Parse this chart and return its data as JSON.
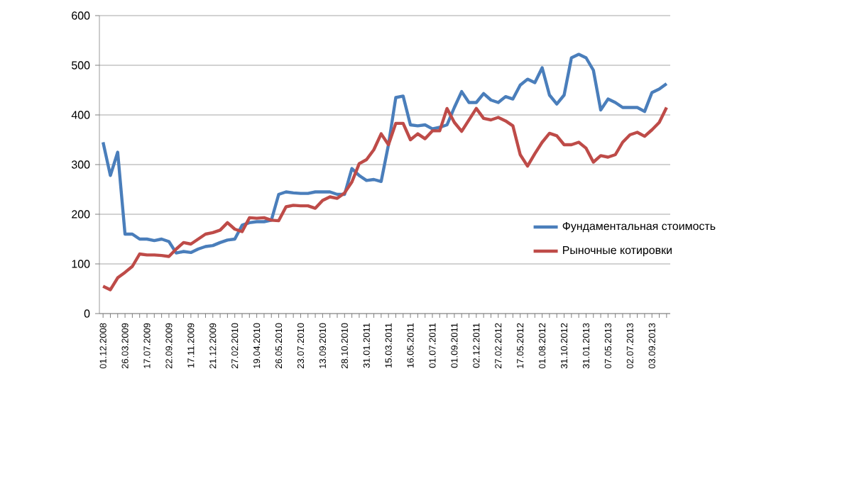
{
  "chart_data": {
    "type": "line",
    "categories": [
      "01.12.2008",
      null,
      null,
      "26.03.2009",
      null,
      null,
      "17.07.2009",
      null,
      null,
      "22.09.2009",
      null,
      null,
      "17.11.2009",
      null,
      null,
      "21.12.2009",
      null,
      null,
      "27.02.2010",
      null,
      null,
      "19.04.2010",
      null,
      null,
      "26.05.2010",
      null,
      null,
      "23.07.2010",
      null,
      null,
      "13.09.2010",
      null,
      null,
      "28.10.2010",
      null,
      null,
      "31.01.2011",
      null,
      null,
      "15.03.2011",
      null,
      null,
      "16.05.2011",
      null,
      null,
      "01.07.2011",
      null,
      null,
      "01.09.2011",
      null,
      null,
      "02.12.2011",
      null,
      null,
      "27.02.2012",
      null,
      null,
      "17.05.2012",
      null,
      null,
      "01.08.2012",
      null,
      null,
      "31.10.2012",
      null,
      null,
      "31.01.2013",
      null,
      null,
      "07.05.2013",
      null,
      null,
      "02.07.2013",
      null,
      null,
      "03.09.2013",
      null,
      null
    ],
    "series": [
      {
        "name": "Фундаментальная  стоимость",
        "color": "#4a7ebb",
        "values": [
          345,
          278,
          325,
          160,
          160,
          150,
          150,
          147,
          150,
          145,
          122,
          125,
          123,
          130,
          135,
          137,
          143,
          148,
          150,
          178,
          183,
          185,
          185,
          188,
          240,
          245,
          243,
          242,
          242,
          245,
          245,
          245,
          240,
          240,
          292,
          278,
          268,
          270,
          266,
          340,
          435,
          438,
          380,
          378,
          380,
          372,
          375,
          380,
          415,
          447,
          425,
          425,
          443,
          430,
          425,
          437,
          432,
          460,
          472,
          465,
          495,
          440,
          422,
          440,
          515,
          522,
          515,
          490,
          410,
          432,
          425,
          415,
          415,
          415,
          407,
          445,
          452,
          463
        ]
      },
      {
        "name": "Рыночные котировки",
        "color": "#be4b48",
        "values": [
          55,
          48,
          72,
          83,
          95,
          120,
          118,
          118,
          117,
          115,
          130,
          143,
          140,
          150,
          160,
          163,
          168,
          183,
          170,
          165,
          193,
          192,
          193,
          188,
          187,
          215,
          218,
          217,
          217,
          212,
          228,
          235,
          232,
          243,
          265,
          302,
          310,
          330,
          362,
          340,
          383,
          383,
          350,
          362,
          352,
          368,
          368,
          413,
          385,
          367,
          390,
          413,
          393,
          390,
          395,
          388,
          378,
          320,
          297,
          322,
          345,
          363,
          358,
          340,
          340,
          345,
          333,
          305,
          318,
          315,
          320,
          345,
          360,
          365,
          357,
          370,
          385,
          415
        ]
      }
    ],
    "ylim": [
      0,
      600
    ],
    "yticks": [
      0,
      100,
      200,
      300,
      400,
      500,
      600
    ],
    "grid": "y",
    "legend": "right",
    "marker": "none",
    "line_style": "solid"
  }
}
